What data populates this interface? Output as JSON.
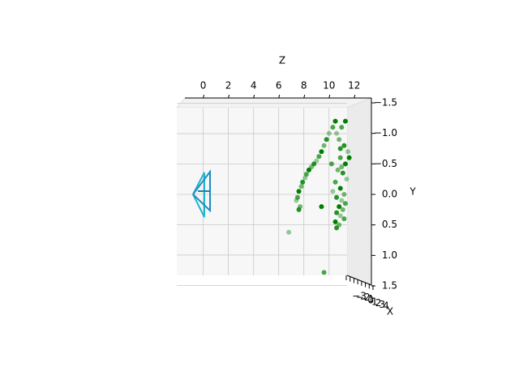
{
  "chart_data": {
    "type": "scatter3d",
    "xlabel": "X",
    "ylabel": "Y",
    "zlabel": "Z",
    "xlim": [
      -3,
      4
    ],
    "xticks": [
      {
        "value": -3,
        "label": "−3"
      },
      {
        "value": -2,
        "label": "−2"
      },
      {
        "value": -1,
        "label": "−1"
      },
      0,
      1,
      2,
      3,
      4
    ],
    "ylim": [
      -1.5,
      1.5
    ],
    "yticks": [
      {
        "value": -1.5,
        "label": "−1.5"
      },
      {
        "value": -1.0,
        "label": "−1.0"
      },
      {
        "value": -0.5,
        "label": "−0.5"
      },
      {
        "value": 0,
        "label": "0.0"
      },
      0.5,
      {
        "value": 1.0,
        "label": "1.0"
      },
      1.5
    ],
    "zlim": [
      -2.1,
      12.4
    ],
    "zticks": [
      0,
      2,
      4,
      6,
      8,
      10,
      12
    ],
    "grid": true,
    "series": [
      {
        "color": "#008000",
        "z": [
          7.4,
          7.5,
          7.6,
          7.8,
          7.9,
          8.1,
          8.2,
          8.4,
          8.6,
          8.8,
          9.0,
          9.2,
          9.4,
          9.6,
          9.8,
          10.0,
          10.3,
          10.5,
          7.7,
          7.6,
          10.6,
          11.0,
          11.3,
          10.8,
          11.2,
          11.5,
          10.9,
          11.3,
          10.7,
          11.1,
          11.4,
          10.5,
          10.9,
          11.2,
          10.6,
          11.0,
          11.3,
          10.8,
          11.1,
          10.6,
          10.9,
          11.2,
          10.5,
          10.8,
          10.6,
          10.3,
          10.2,
          11.6,
          11.0,
          10.9,
          6.8,
          9.6,
          9.4
        ],
        "y": [
          0.1,
          0.05,
          -0.05,
          -0.13,
          -0.2,
          -0.27,
          -0.33,
          -0.4,
          -0.45,
          -0.5,
          -0.55,
          -0.62,
          -0.7,
          -0.8,
          -0.9,
          -1.0,
          -1.1,
          -1.2,
          0.2,
          0.25,
          -1.0,
          -1.1,
          -1.2,
          -0.9,
          -0.8,
          -0.7,
          -0.6,
          -0.5,
          -0.4,
          -0.35,
          -0.25,
          -0.2,
          -0.1,
          0.0,
          0.05,
          0.1,
          0.15,
          0.2,
          0.25,
          0.3,
          0.35,
          0.4,
          0.45,
          0.5,
          0.55,
          -0.05,
          -0.5,
          -0.6,
          -0.45,
          -0.75,
          0.62,
          1.28,
          0.2
        ]
      }
    ]
  }
}
